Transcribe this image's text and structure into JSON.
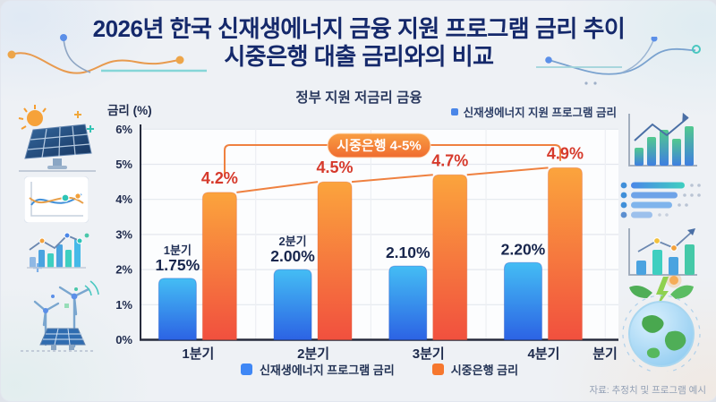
{
  "header": {
    "title_line1": "2026년 한국 신재생에너지 금융 지원 프로그램 금리 추이",
    "title_line2": "시중은행 대출 금리와의 비교",
    "subtitle": "정부 지원 저금리 금융",
    "top_right_note": "신재생에너지 지원 프로그램 금리"
  },
  "chart_data": {
    "type": "bar",
    "title": "정부 지원 저금리 금융",
    "categories": [
      "1분기",
      "2분기",
      "3분기",
      "4분기"
    ],
    "x_axis_unit": "분기",
    "ylabel": "금리 (%)",
    "ylim": [
      0,
      6
    ],
    "y_ticks": [
      "0%",
      "1%",
      "2%",
      "3%",
      "4%",
      "5%",
      "6%"
    ],
    "grid": true,
    "legend_position": "bottom",
    "series": [
      {
        "name": "신재생에너지 프로그램 금리",
        "values": [
          1.75,
          2.0,
          2.1,
          2.2
        ],
        "labels": [
          "1.75%",
          "2.00%",
          "2.10%",
          "2.20%"
        ],
        "sub_labels": [
          "1분기",
          "2분기",
          "",
          ""
        ],
        "color_top": "#44bdf4",
        "color_bottom": "#2c63e4"
      },
      {
        "name": "시중은행 금리",
        "values": [
          4.2,
          4.5,
          4.7,
          4.9
        ],
        "labels": [
          "4.2%",
          "4.5%",
          "4.7%",
          "4.9%"
        ],
        "sub_labels": [
          "",
          "",
          "",
          ""
        ],
        "color_top": "#fba43d",
        "color_bottom": "#f1503e"
      }
    ],
    "trend_line_on_series": "시중은행 금리",
    "annotation_badge": "시중은행 4-5%"
  },
  "legend": {
    "items": [
      {
        "label": "신재생에너지 프로그램 금리",
        "color": "#3f87f5"
      },
      {
        "label": "시중은행 금리",
        "color": "#f6772e"
      }
    ]
  },
  "footer": {
    "source": "자료: 추정치 및 프로그램 예시"
  },
  "colors": {
    "title": "#15296b",
    "orange_value_label": "#d63a2c",
    "blue_value_label": "#18264d",
    "trend_bracket_line": "#ef8140",
    "badge_gradient_top": "#f99e42",
    "badge_gradient_bottom": "#ef6c30",
    "background": "#eef1f5",
    "plot_background": "#fcfdfe",
    "gridline": "#e4e8ee",
    "axis": "#262b3c"
  },
  "side_icons": {
    "left": [
      "solar-panel-sun",
      "line-chart",
      "bar-chart-trend",
      "wind-turbines"
    ],
    "right": [
      "growth-bar-chart",
      "data-list",
      "bar-chart-arrow",
      "green-earth"
    ]
  }
}
